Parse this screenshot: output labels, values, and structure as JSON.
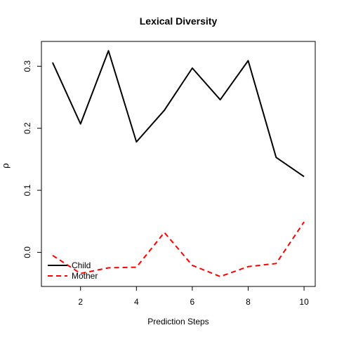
{
  "chart_data": {
    "type": "line",
    "title": "Lexical Diversity",
    "xlabel": "Prediction Steps",
    "ylabel": "ρ",
    "x": [
      1,
      2,
      3,
      4,
      5,
      6,
      7,
      8,
      9,
      10
    ],
    "xlim": [
      0.6,
      10.4
    ],
    "ylim": [
      -0.055,
      0.34
    ],
    "xticks": [
      2,
      4,
      6,
      8,
      10
    ],
    "xtick_labels": [
      "2",
      "4",
      "6",
      "8",
      "10"
    ],
    "yticks": [
      0.0,
      0.1,
      0.2,
      0.3
    ],
    "ytick_labels": [
      "0.0",
      "0.1",
      "0.2",
      "0.3"
    ],
    "grid": false,
    "legend_position": "bottom-left",
    "series": [
      {
        "name": "Child",
        "color": "#000000",
        "style": "solid",
        "values": [
          0.306,
          0.207,
          0.325,
          0.178,
          0.229,
          0.297,
          0.246,
          0.309,
          0.153,
          0.122
        ]
      },
      {
        "name": "Mother",
        "color": "#ff0000",
        "style": "dashed",
        "values": [
          -0.005,
          -0.034,
          -0.025,
          -0.024,
          0.032,
          -0.021,
          -0.039,
          -0.023,
          -0.018,
          0.049
        ]
      }
    ]
  }
}
